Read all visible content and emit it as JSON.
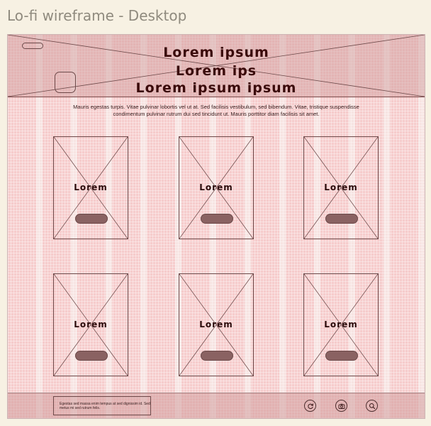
{
  "frame_title": "Lo-fi wireframe - Desktop",
  "header": {
    "title_line1": "Lorem ipsum",
    "title_line2": "Lorem ips",
    "title_line3": "Lorem ipsum ipsum"
  },
  "description": "Mauris egestas turpis. Vitae pulvinar lobortis vel ut at. Sed facilisis vestibulum, sed bibendum. Vitae, tristique suspendisse condimentum pulvinar rutrum dui sed tincidunt ut. Mauris porttitor diam facilisis sit amet.",
  "cards": [
    {
      "label": "Lorem"
    },
    {
      "label": "Lorem"
    },
    {
      "label": "Lorem"
    },
    {
      "label": "Lorem"
    },
    {
      "label": "Lorem"
    },
    {
      "label": "Lorem"
    }
  ],
  "footer": {
    "text": "Egestas sed massa enim tempus at sed dignissim id. Sed metus mi sed rutrum felis.",
    "icons": [
      "refresh-icon",
      "camera-icon",
      "search-icon"
    ]
  },
  "colors": {
    "background": "#f7f1e3",
    "canvas": "#f7d9d8",
    "header_band": "#cd9696",
    "stroke": "#6e4a4a",
    "button_fill": "#8a6262",
    "text_dark": "#3a0a0a"
  }
}
